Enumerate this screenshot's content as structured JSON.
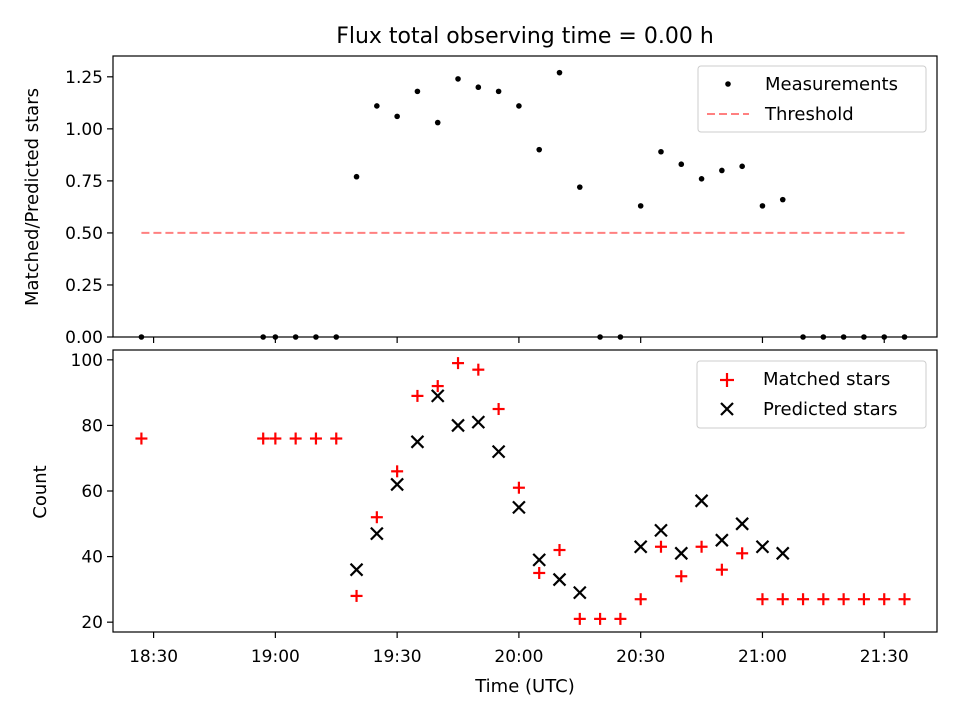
{
  "chart_data": [
    {
      "type": "scatter",
      "title": "Flux total observing time = 0.00 h",
      "xlabel": "",
      "ylabel": "Matched/Predicted stars",
      "xlim": [
        "18:20",
        "21:43"
      ],
      "ylim": [
        0,
        1.35
      ],
      "yticks": [
        0.0,
        0.25,
        0.5,
        0.75,
        1.0,
        1.25
      ],
      "yticklabels": [
        "0.00",
        "0.25",
        "0.50",
        "0.75",
        "1.00",
        "1.25"
      ],
      "xticks": [
        "18:30",
        "19:00",
        "19:30",
        "20:00",
        "20:30",
        "21:00",
        "21:30"
      ],
      "legend": {
        "position": "top-right",
        "entries": [
          "Measurements",
          "Threshold"
        ]
      },
      "grid": false,
      "series": [
        {
          "name": "Measurements",
          "color": "#000000",
          "marker": "dot",
          "x": [
            "18:27",
            "18:57",
            "19:00",
            "19:05",
            "19:10",
            "19:15",
            "19:20",
            "19:25",
            "19:30",
            "19:35",
            "19:40",
            "19:45",
            "19:50",
            "19:55",
            "20:00",
            "20:05",
            "20:10",
            "20:15",
            "20:20",
            "20:25",
            "20:30",
            "20:35",
            "20:40",
            "20:45",
            "20:50",
            "20:55",
            "21:00",
            "21:05",
            "21:10",
            "21:15",
            "21:20",
            "21:25",
            "21:30",
            "21:35"
          ],
          "y": [
            0,
            0,
            0,
            0,
            0,
            0,
            0.77,
            1.11,
            1.06,
            1.18,
            1.03,
            1.24,
            1.2,
            1.18,
            1.11,
            0.9,
            1.27,
            0.72,
            0,
            0,
            0.63,
            0.89,
            0.83,
            0.76,
            0.8,
            0.82,
            0.63,
            0.66,
            0,
            0,
            0,
            0,
            0,
            0
          ]
        },
        {
          "name": "Threshold",
          "color": "#ff8080",
          "style": "dashed",
          "x": [
            "18:27",
            "21:35"
          ],
          "y": [
            0.5,
            0.5
          ]
        }
      ]
    },
    {
      "type": "scatter",
      "title": "",
      "xlabel": "Time (UTC)",
      "ylabel": "Count",
      "xlim": [
        "18:20",
        "21:43"
      ],
      "ylim": [
        17,
        103
      ],
      "yticks": [
        20,
        40,
        60,
        80,
        100
      ],
      "yticklabels": [
        "20",
        "40",
        "60",
        "80",
        "100"
      ],
      "xticks": [
        "18:30",
        "19:00",
        "19:30",
        "20:00",
        "20:30",
        "21:00",
        "21:30"
      ],
      "legend": {
        "position": "top-right",
        "entries": [
          "Matched stars",
          "Predicted stars"
        ]
      },
      "grid": false,
      "series": [
        {
          "name": "Matched stars",
          "color": "#ff0000",
          "marker": "plus",
          "x": [
            "18:27",
            "18:57",
            "19:00",
            "19:05",
            "19:10",
            "19:15",
            "19:20",
            "19:25",
            "19:30",
            "19:35",
            "19:40",
            "19:45",
            "19:50",
            "19:55",
            "20:00",
            "20:05",
            "20:10",
            "20:15",
            "20:20",
            "20:25",
            "20:30",
            "20:35",
            "20:40",
            "20:45",
            "20:50",
            "20:55",
            "21:00",
            "21:05",
            "21:10",
            "21:15",
            "21:20",
            "21:25",
            "21:30",
            "21:35"
          ],
          "y": [
            76,
            76,
            76,
            76,
            76,
            76,
            28,
            52,
            66,
            89,
            92,
            99,
            97,
            85,
            61,
            35,
            42,
            21,
            21,
            21,
            27,
            43,
            34,
            43,
            36,
            41,
            27,
            27,
            27,
            27,
            27,
            27,
            27,
            27
          ]
        },
        {
          "name": "Predicted stars",
          "color": "#000000",
          "marker": "x",
          "x": [
            "19:20",
            "19:25",
            "19:30",
            "19:35",
            "19:40",
            "19:45",
            "19:50",
            "19:55",
            "20:00",
            "20:05",
            "20:10",
            "20:15",
            "20:30",
            "20:35",
            "20:40",
            "20:45",
            "20:50",
            "20:55",
            "21:00",
            "21:05"
          ],
          "y": [
            36,
            47,
            62,
            75,
            89,
            80,
            81,
            72,
            55,
            39,
            33,
            29,
            43,
            48,
            41,
            57,
            45,
            50,
            43,
            41
          ]
        }
      ]
    }
  ]
}
